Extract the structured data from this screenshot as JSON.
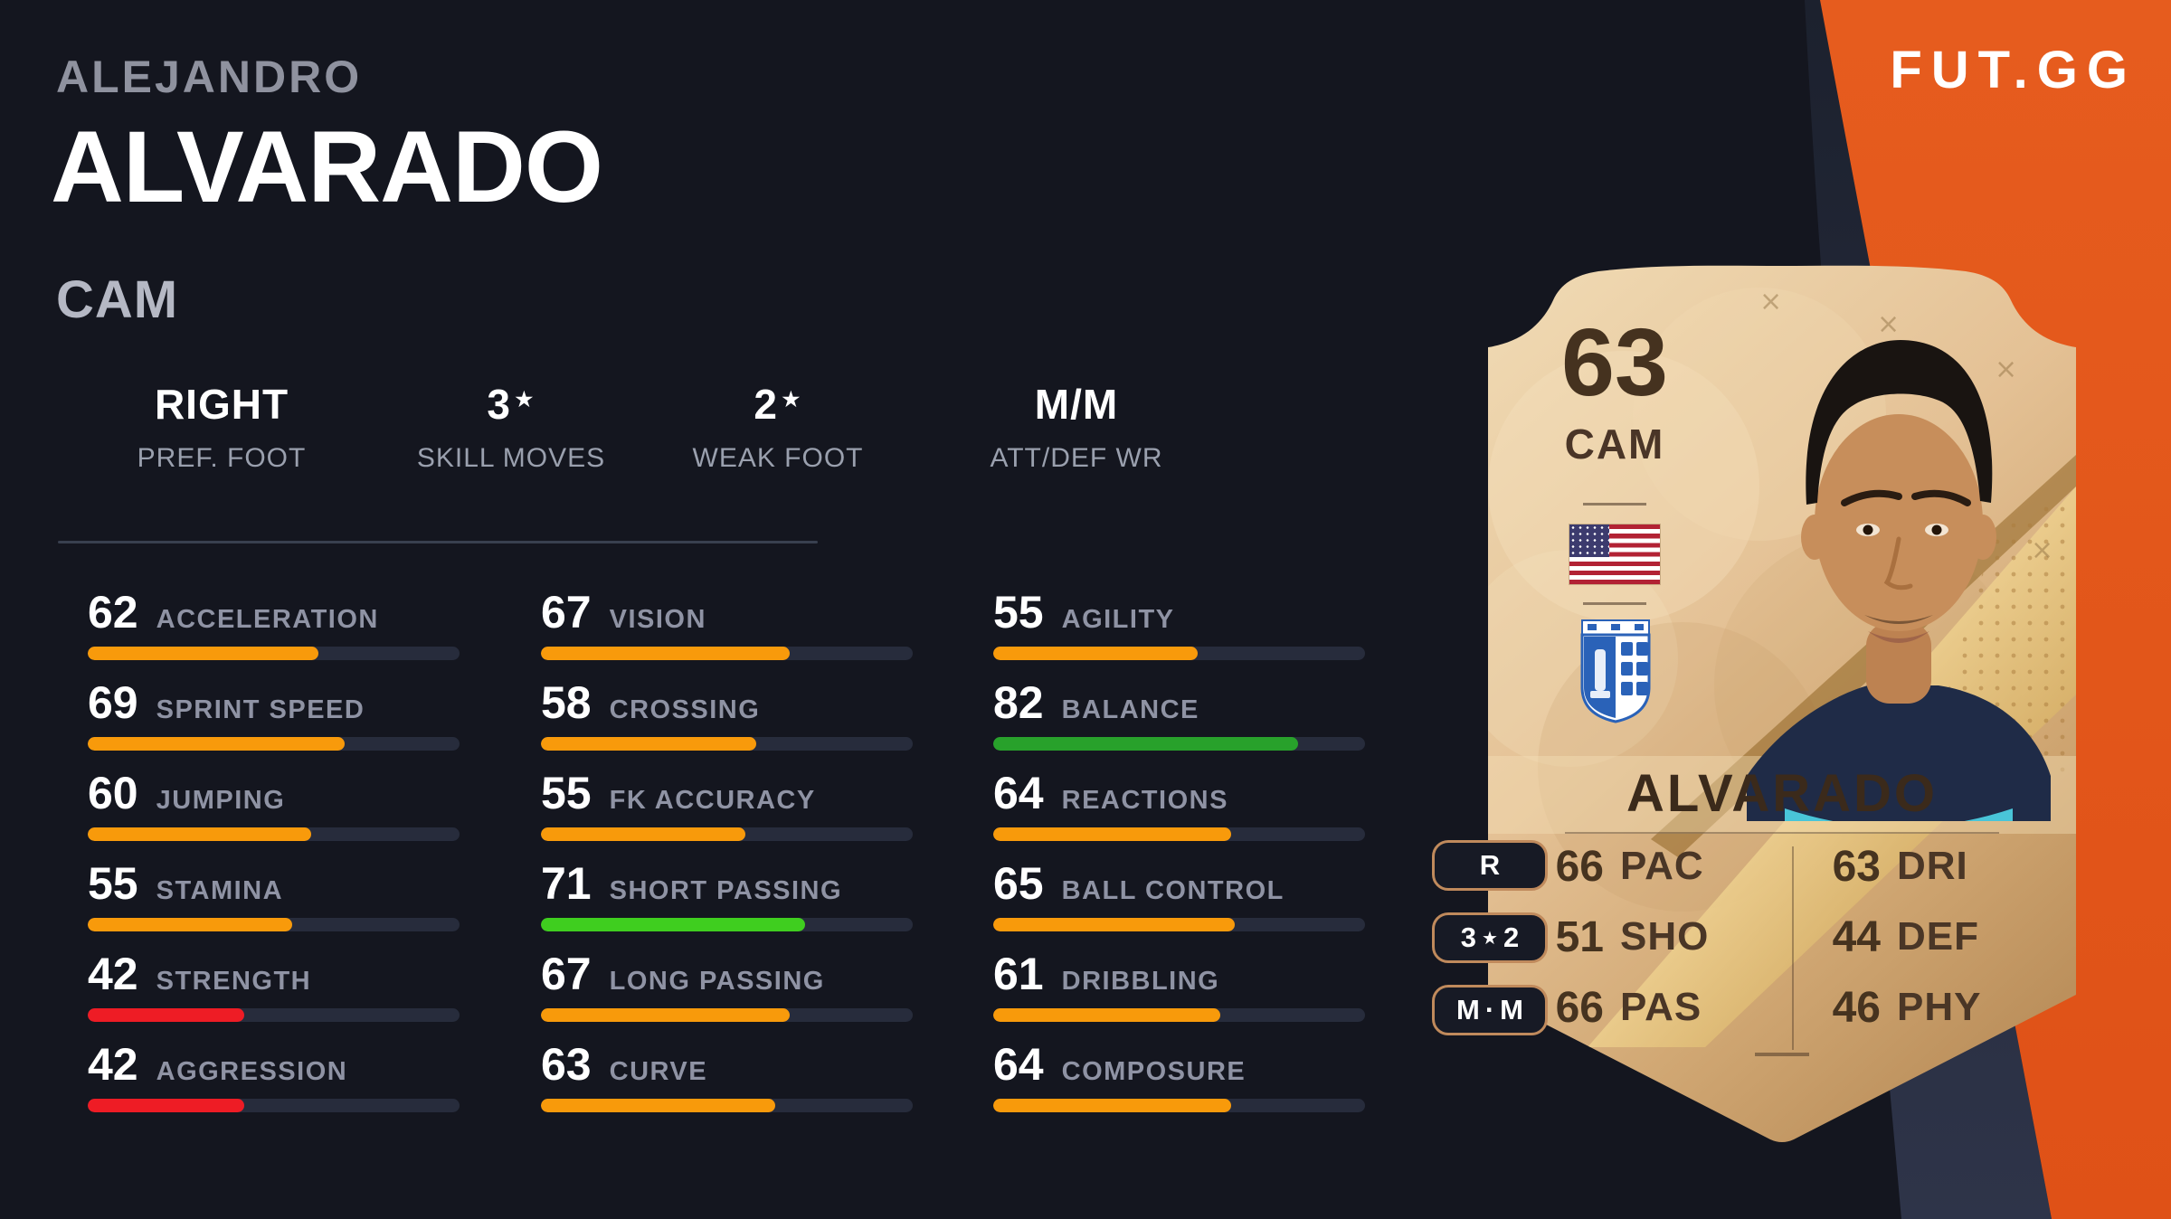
{
  "logo": {
    "text": "FUT.GG"
  },
  "player": {
    "first_name": "ALEJANDRO",
    "last_name": "ALVARADO",
    "position": "CAM"
  },
  "summary": [
    {
      "value": "RIGHT",
      "star": "",
      "label": "PREF. FOOT"
    },
    {
      "value": "3",
      "star": "★",
      "label": "SKILL MOVES"
    },
    {
      "value": "2",
      "star": "★",
      "label": "WEAK FOOT"
    },
    {
      "value": "M/M",
      "star": "",
      "label": "ATT/DEF WR"
    }
  ],
  "stats_columns": [
    [
      {
        "label": "ACCELERATION",
        "value": 62
      },
      {
        "label": "SPRINT SPEED",
        "value": 69
      },
      {
        "label": "JUMPING",
        "value": 60
      },
      {
        "label": "STAMINA",
        "value": 55
      },
      {
        "label": "STRENGTH",
        "value": 42
      },
      {
        "label": "AGGRESSION",
        "value": 42
      }
    ],
    [
      {
        "label": "VISION",
        "value": 67
      },
      {
        "label": "CROSSING",
        "value": 58
      },
      {
        "label": "FK ACCURACY",
        "value": 55
      },
      {
        "label": "SHORT PASSING",
        "value": 71
      },
      {
        "label": "LONG PASSING",
        "value": 67
      },
      {
        "label": "CURVE",
        "value": 63
      }
    ],
    [
      {
        "label": "AGILITY",
        "value": 55
      },
      {
        "label": "BALANCE",
        "value": 82
      },
      {
        "label": "REACTIONS",
        "value": 64
      },
      {
        "label": "BALL CONTROL",
        "value": 65
      },
      {
        "label": "DRIBBLING",
        "value": 61
      },
      {
        "label": "COMPOSURE",
        "value": 64
      }
    ]
  ],
  "card": {
    "rating": "63",
    "position": "CAM",
    "name": "ALVARADO",
    "badges": [
      {
        "segments": [
          {
            "t": "R",
            "small": false
          }
        ]
      },
      {
        "segments": [
          {
            "t": "3",
            "small": false
          },
          {
            "t": "★",
            "small": true
          },
          {
            "t": "2",
            "small": false
          }
        ]
      },
      {
        "segments": [
          {
            "t": "M",
            "small": false
          },
          {
            "t": "·",
            "small": false
          },
          {
            "t": "M",
            "small": false
          }
        ]
      }
    ],
    "stats_left": [
      {
        "value": "66",
        "label": "PAC"
      },
      {
        "value": "51",
        "label": "SHO"
      },
      {
        "value": "66",
        "label": "PAS"
      }
    ],
    "stats_right": [
      {
        "value": "63",
        "label": "DRI"
      },
      {
        "value": "44",
        "label": "DEF"
      },
      {
        "value": "46",
        "label": "PHY"
      }
    ]
  },
  "icons": {
    "nation": "us-flag",
    "club": "blue-white-crest"
  },
  "palette": {
    "bg": "#14161f",
    "band_navy_1": "#1c212e",
    "band_navy_2": "#2e3449",
    "accent_orange": "#e65a1d",
    "track": "#272c3c",
    "red": "#ee1c25",
    "orange": "#f89a0b",
    "green_light": "#3fce1f",
    "green_dark": "#28a12b"
  }
}
